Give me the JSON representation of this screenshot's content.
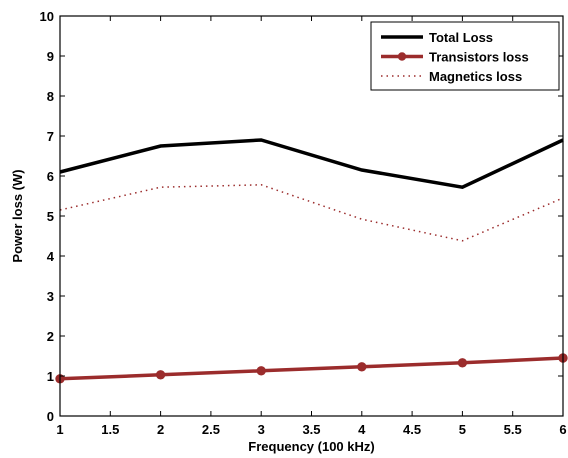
{
  "chart_data": {
    "type": "line",
    "xlabel": "Frequency (100 kHz)",
    "ylabel": "Power loss (W)",
    "xlim": [
      1,
      6
    ],
    "ylim": [
      0,
      10
    ],
    "xticks": [
      1,
      1.5,
      2,
      2.5,
      3,
      3.5,
      4,
      4.5,
      5,
      5.5,
      6
    ],
    "yticks": [
      0,
      1,
      2,
      3,
      4,
      5,
      6,
      7,
      8,
      9,
      10
    ],
    "xtick_labels": [
      "1",
      "1.5",
      "2",
      "2.5",
      "3",
      "3.5",
      "4",
      "4.5",
      "5",
      "5.5",
      "6"
    ],
    "ytick_labels": [
      "0",
      "1",
      "2",
      "3",
      "4",
      "5",
      "6",
      "7",
      "8",
      "9",
      "10"
    ],
    "grid": false,
    "legend_position": "top-right",
    "x": [
      1,
      2,
      3,
      4,
      5,
      6
    ],
    "series": [
      {
        "name": "Total Loss",
        "values": [
          6.1,
          6.75,
          6.9,
          6.15,
          5.72,
          6.9
        ],
        "color": "#000000",
        "style": "solid",
        "marker": "none"
      },
      {
        "name": "Transistors loss",
        "values": [
          0.93,
          1.03,
          1.13,
          1.23,
          1.33,
          1.45
        ],
        "color": "#9b2c2c",
        "style": "solid",
        "marker": "circle"
      },
      {
        "name": "Magnetics loss",
        "values": [
          5.15,
          5.72,
          5.78,
          4.92,
          4.38,
          5.45
        ],
        "color": "#9b2c2c",
        "style": "dotted",
        "marker": "none"
      }
    ]
  }
}
